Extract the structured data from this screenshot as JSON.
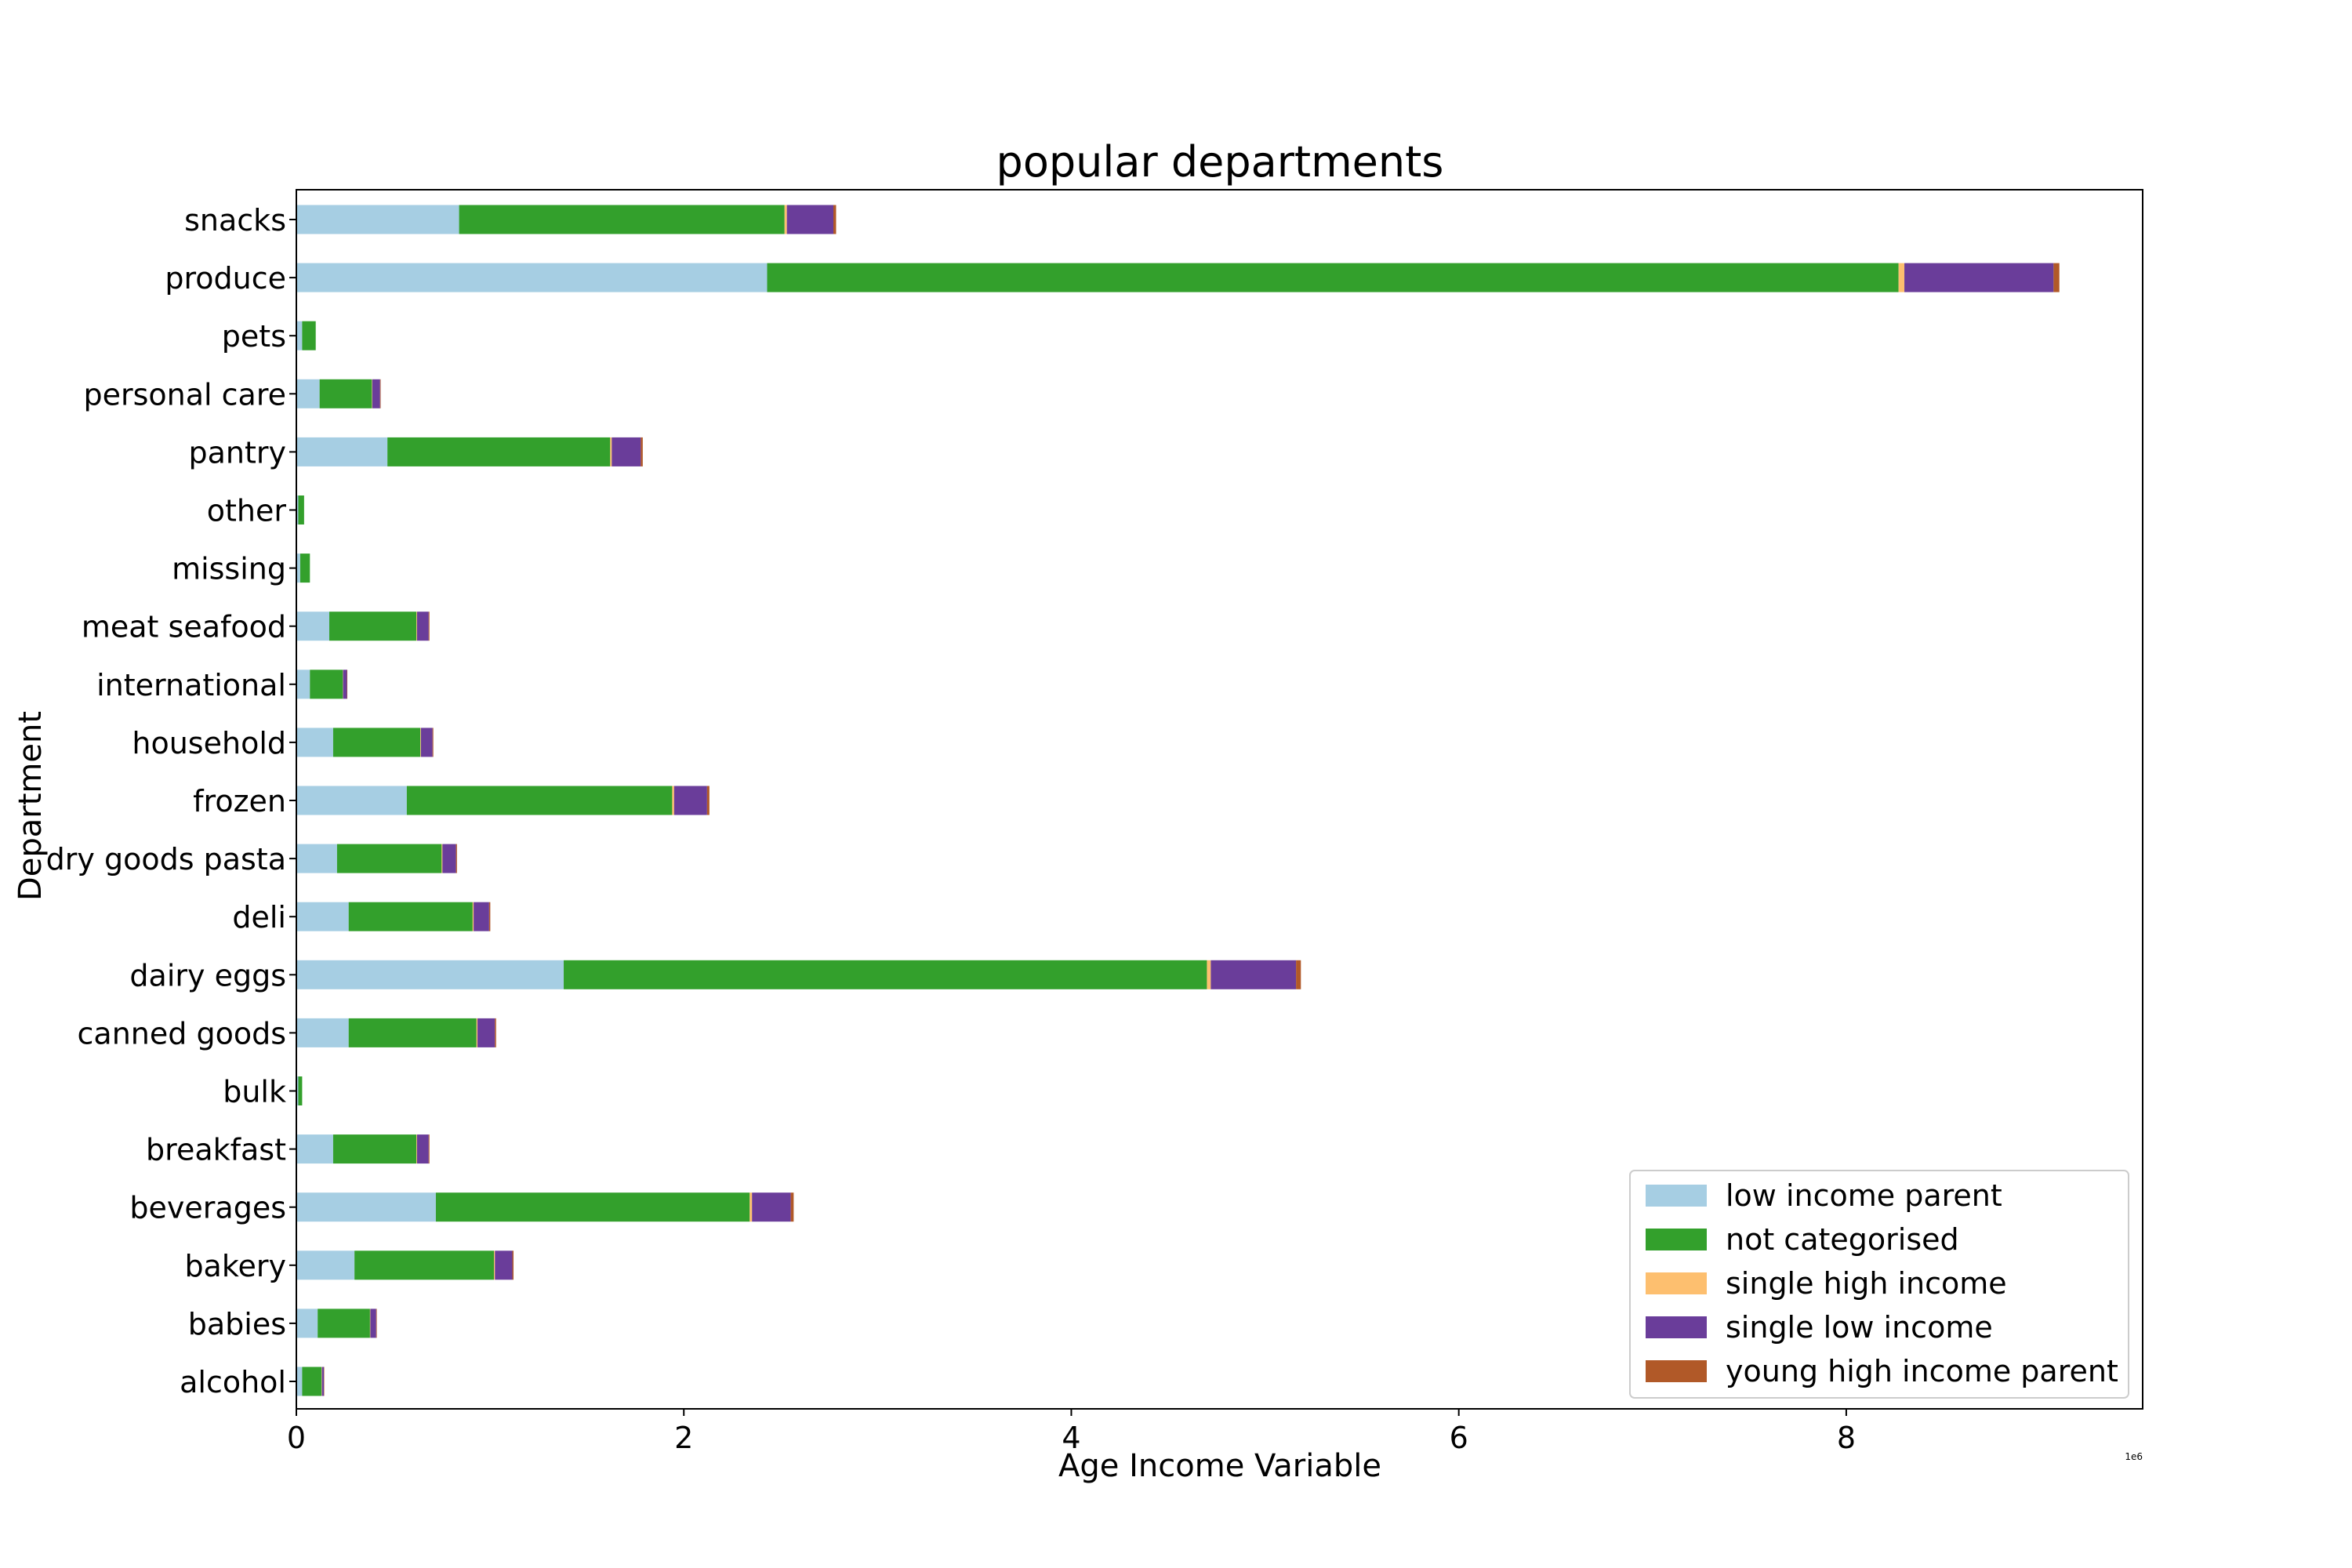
{
  "chart_data": {
    "type": "bar",
    "orientation": "horizontal",
    "stacked": true,
    "title": "popular departments",
    "xlabel": "Age Income Variable",
    "ylabel": "Department",
    "x_offset_label": "1e6",
    "xlim": [
      0,
      9.53
    ],
    "x_ticks": [
      0,
      2,
      4,
      6,
      8
    ],
    "x_tick_labels": [
      "0",
      "2",
      "4",
      "6",
      "8"
    ],
    "x_scale_factor": 1000000,
    "grid": false,
    "legend_position": "bottom-right",
    "categories": [
      "alcohol",
      "babies",
      "bakery",
      "beverages",
      "breakfast",
      "bulk",
      "canned goods",
      "dairy eggs",
      "deli",
      "dry goods pasta",
      "frozen",
      "household",
      "international",
      "meat seafood",
      "missing",
      "other",
      "pantry",
      "personal care",
      "pets",
      "produce",
      "snacks"
    ],
    "series": [
      {
        "name": "low income parent",
        "color": "#a6cee3",
        "values": [
          0.03,
          0.11,
          0.3,
          0.72,
          0.19,
          0.01,
          0.27,
          1.38,
          0.27,
          0.21,
          0.57,
          0.19,
          0.07,
          0.17,
          0.02,
          0.01,
          0.47,
          0.12,
          0.03,
          2.43,
          0.84
        ]
      },
      {
        "name": "not categorised",
        "color": "#33a02c",
        "values": [
          0.1,
          0.27,
          0.72,
          1.62,
          0.43,
          0.02,
          0.66,
          3.32,
          0.64,
          0.54,
          1.37,
          0.45,
          0.17,
          0.45,
          0.05,
          0.03,
          1.15,
          0.27,
          0.07,
          5.84,
          1.68
        ]
      },
      {
        "name": "single high income",
        "color": "#fdbf6f",
        "values": [
          0.002,
          0.002,
          0.005,
          0.012,
          0.003,
          0.0,
          0.005,
          0.02,
          0.005,
          0.004,
          0.01,
          0.003,
          0.001,
          0.003,
          0.0,
          0.0,
          0.008,
          0.002,
          0.0,
          0.03,
          0.012
        ]
      },
      {
        "name": "single low income",
        "color": "#6a3d9a",
        "values": [
          0.01,
          0.03,
          0.09,
          0.2,
          0.06,
          0.0,
          0.09,
          0.44,
          0.08,
          0.07,
          0.17,
          0.06,
          0.02,
          0.06,
          0.0,
          0.0,
          0.15,
          0.04,
          0.0,
          0.77,
          0.24
        ]
      },
      {
        "name": "young high income parent",
        "color": "#b15928",
        "values": [
          0.002,
          0.003,
          0.006,
          0.015,
          0.004,
          0.0,
          0.006,
          0.025,
          0.006,
          0.005,
          0.012,
          0.004,
          0.001,
          0.004,
          0.0,
          0.0,
          0.01,
          0.003,
          0.0,
          0.03,
          0.014
        ]
      }
    ]
  }
}
